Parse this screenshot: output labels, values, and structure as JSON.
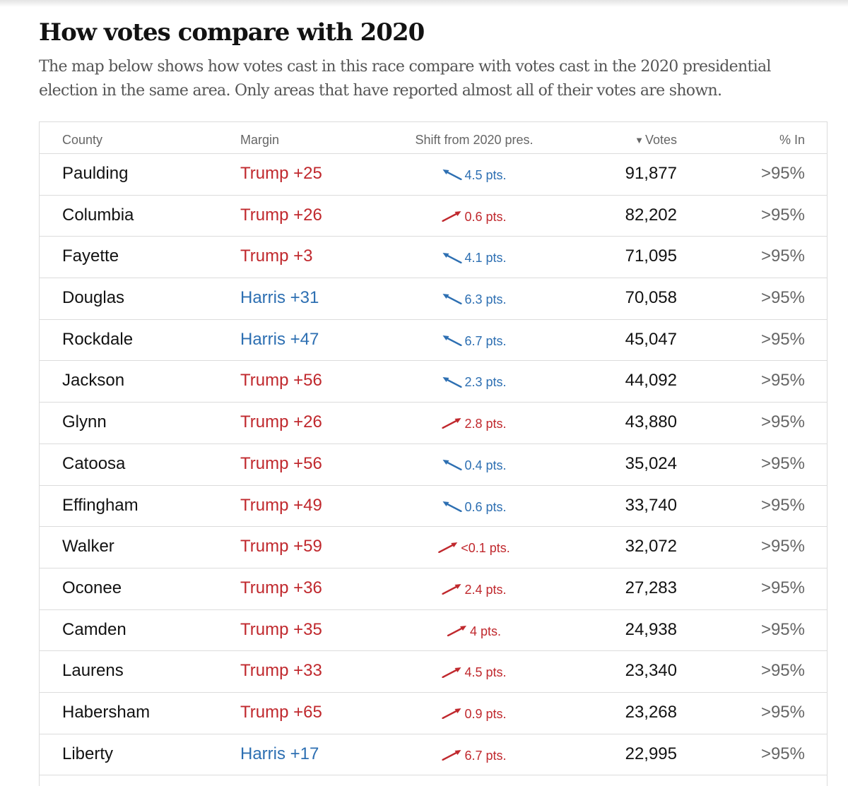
{
  "title": "How votes compare with 2020",
  "subtitle": "The map below shows how votes cast in this race compare with votes cast in the 2020 presidential election in the same area. Only areas that have reported almost all of their votes are shown.",
  "colors": {
    "trump": "#c0282d",
    "harris": "#2d6fb2"
  },
  "table": {
    "headers": {
      "county": "County",
      "margin": "Margin",
      "shift": "Shift from 2020 pres.",
      "votes": "Votes",
      "pct_in": "% In"
    },
    "sort_icon": "sort-descending-triangle-icon",
    "rows": [
      {
        "county": "Paulding",
        "margin": "Trump +25",
        "party": "trump",
        "shift": "4.5 pts.",
        "shift_dir": "left",
        "votes": "91,877",
        "pct_in": ">95%"
      },
      {
        "county": "Columbia",
        "margin": "Trump +26",
        "party": "trump",
        "shift": "0.6 pts.",
        "shift_dir": "right",
        "votes": "82,202",
        "pct_in": ">95%"
      },
      {
        "county": "Fayette",
        "margin": "Trump +3",
        "party": "trump",
        "shift": "4.1 pts.",
        "shift_dir": "left",
        "votes": "71,095",
        "pct_in": ">95%"
      },
      {
        "county": "Douglas",
        "margin": "Harris +31",
        "party": "harris",
        "shift": "6.3 pts.",
        "shift_dir": "left",
        "votes": "70,058",
        "pct_in": ">95%"
      },
      {
        "county": "Rockdale",
        "margin": "Harris +47",
        "party": "harris",
        "shift": "6.7 pts.",
        "shift_dir": "left",
        "votes": "45,047",
        "pct_in": ">95%"
      },
      {
        "county": "Jackson",
        "margin": "Trump +56",
        "party": "trump",
        "shift": "2.3 pts.",
        "shift_dir": "left",
        "votes": "44,092",
        "pct_in": ">95%"
      },
      {
        "county": "Glynn",
        "margin": "Trump +26",
        "party": "trump",
        "shift": "2.8 pts.",
        "shift_dir": "right",
        "votes": "43,880",
        "pct_in": ">95%"
      },
      {
        "county": "Catoosa",
        "margin": "Trump +56",
        "party": "trump",
        "shift": "0.4 pts.",
        "shift_dir": "left",
        "votes": "35,024",
        "pct_in": ">95%"
      },
      {
        "county": "Effingham",
        "margin": "Trump +49",
        "party": "trump",
        "shift": "0.6 pts.",
        "shift_dir": "left",
        "votes": "33,740",
        "pct_in": ">95%"
      },
      {
        "county": "Walker",
        "margin": "Trump +59",
        "party": "trump",
        "shift": "<0.1 pts.",
        "shift_dir": "right",
        "votes": "32,072",
        "pct_in": ">95%"
      },
      {
        "county": "Oconee",
        "margin": "Trump +36",
        "party": "trump",
        "shift": "2.4 pts.",
        "shift_dir": "right",
        "votes": "27,283",
        "pct_in": ">95%"
      },
      {
        "county": "Camden",
        "margin": "Trump +35",
        "party": "trump",
        "shift": "4 pts.",
        "shift_dir": "right",
        "votes": "24,938",
        "pct_in": ">95%"
      },
      {
        "county": "Laurens",
        "margin": "Trump +33",
        "party": "trump",
        "shift": "4.5 pts.",
        "shift_dir": "right",
        "votes": "23,340",
        "pct_in": ">95%"
      },
      {
        "county": "Habersham",
        "margin": "Trump +65",
        "party": "trump",
        "shift": "0.9 pts.",
        "shift_dir": "right",
        "votes": "23,268",
        "pct_in": ">95%"
      },
      {
        "county": "Liberty",
        "margin": "Harris +17",
        "party": "harris",
        "shift": "6.7 pts.",
        "shift_dir": "right",
        "votes": "22,995",
        "pct_in": ">95%"
      }
    ]
  }
}
